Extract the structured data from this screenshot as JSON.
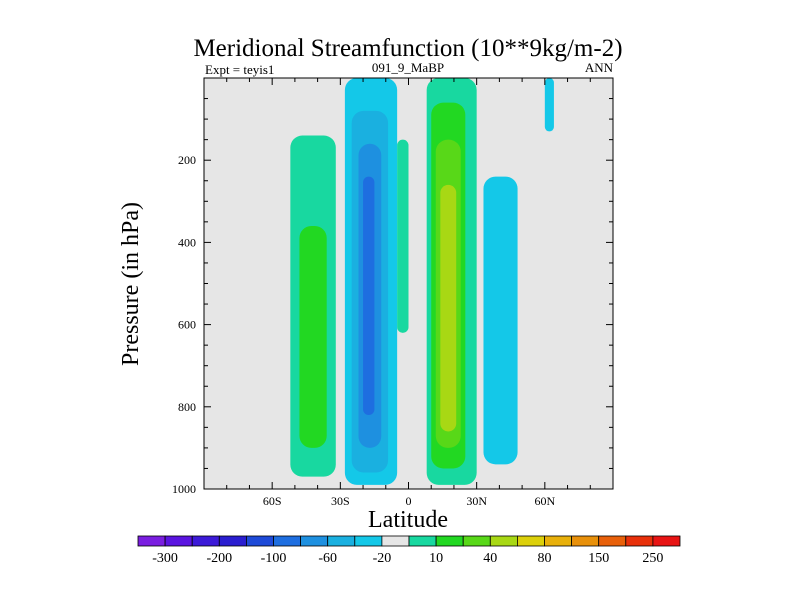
{
  "chart_data": {
    "type": "filled-contour",
    "title": "Meridional Streamfunction (10**9kg/m-2)",
    "left_string": "Expt = teyis1",
    "center_string": "091_9_MaBP",
    "right_string": "ANN",
    "xlabel": "Latitude",
    "ylabel": "Pressure (in hPa)",
    "xlim": [
      -90,
      90
    ],
    "ylim": [
      1000,
      0
    ],
    "x_ticks": [
      {
        "value": -60,
        "label": "60S"
      },
      {
        "value": -30,
        "label": "30S"
      },
      {
        "value": 0,
        "label": "0"
      },
      {
        "value": 30,
        "label": "30N"
      },
      {
        "value": 60,
        "label": "60N"
      }
    ],
    "y_ticks": [
      {
        "value": 200,
        "label": "200"
      },
      {
        "value": 400,
        "label": "400"
      },
      {
        "value": 600,
        "label": "600"
      },
      {
        "value": 800,
        "label": "800"
      },
      {
        "value": 1000,
        "label": "1000"
      }
    ],
    "colorbar": {
      "colors": [
        "#7a1ee0",
        "#5a14e0",
        "#3c1ad8",
        "#2a1ed0",
        "#1e4ad8",
        "#1e6ee0",
        "#1e90e0",
        "#1ab0e0",
        "#14c8e8",
        "#e6e6e6",
        "#18d8a0",
        "#22d822",
        "#58d818",
        "#a8d814",
        "#dcd00a",
        "#e8b00a",
        "#e8900a",
        "#e8600a",
        "#e8300a",
        "#e81414"
      ],
      "labels": [
        "-300",
        "-200",
        "-100",
        "-60",
        "-20",
        "10",
        "40",
        "80",
        "150",
        "250"
      ],
      "label_boundaries": [
        1,
        3,
        5,
        7,
        9,
        11,
        13,
        15,
        17,
        19
      ]
    },
    "cells": [
      {
        "sign": "positive",
        "level": "10",
        "lat_range": [
          -52,
          -32
        ],
        "pressure_range": [
          140,
          970
        ],
        "max_level": "40",
        "color": "#18d8a0"
      },
      {
        "sign": "positive",
        "level": "40",
        "lat_range": [
          -48,
          -36
        ],
        "pressure_range": [
          360,
          900
        ],
        "color": "#22d822"
      },
      {
        "sign": "negative",
        "level": "-20",
        "lat_range": [
          -28,
          -5
        ],
        "pressure_range": [
          0,
          990
        ],
        "color": "#14c8e8"
      },
      {
        "sign": "negative",
        "level": "-60",
        "lat_range": [
          -25,
          -9
        ],
        "pressure_range": [
          80,
          960
        ],
        "color": "#1ab0e0"
      },
      {
        "sign": "negative",
        "level": "-100",
        "lat_range": [
          -22,
          -12
        ],
        "pressure_range": [
          160,
          900
        ],
        "color": "#1e90e0"
      },
      {
        "sign": "negative",
        "level": "-140",
        "lat_range": [
          -20,
          -15
        ],
        "pressure_range": [
          240,
          820
        ],
        "color": "#1e6ee0"
      },
      {
        "sign": "positive",
        "level": "10",
        "lat_range": [
          -5,
          0
        ],
        "pressure_range": [
          150,
          620
        ],
        "color": "#18d8a0"
      },
      {
        "sign": "positive",
        "level": "10",
        "lat_range": [
          8,
          30
        ],
        "pressure_range": [
          0,
          990
        ],
        "color": "#18d8a0"
      },
      {
        "sign": "positive",
        "level": "40",
        "lat_range": [
          10,
          25
        ],
        "pressure_range": [
          60,
          950
        ],
        "color": "#22d822"
      },
      {
        "sign": "positive",
        "level": "60",
        "lat_range": [
          12,
          23
        ],
        "pressure_range": [
          150,
          900
        ],
        "color": "#58d818"
      },
      {
        "sign": "positive",
        "level": "80",
        "lat_range": [
          14,
          21
        ],
        "pressure_range": [
          260,
          860
        ],
        "color": "#a8d814"
      },
      {
        "sign": "negative",
        "level": "-20",
        "lat_range": [
          33,
          48
        ],
        "pressure_range": [
          240,
          940
        ],
        "color": "#14c8e8"
      },
      {
        "sign": "negative",
        "level": "-20",
        "lat_range": [
          60,
          64
        ],
        "pressure_range": [
          0,
          130
        ],
        "color": "#14c8e8"
      }
    ]
  }
}
